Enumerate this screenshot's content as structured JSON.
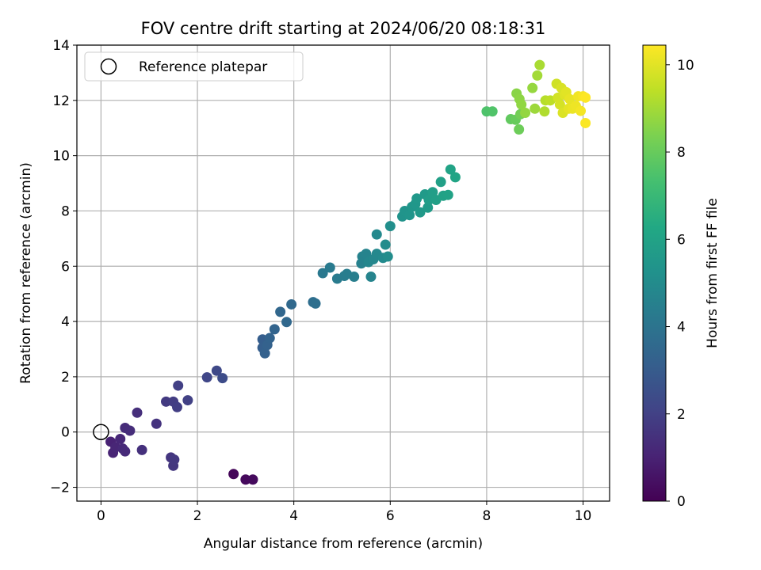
{
  "chart_data": {
    "type": "scatter",
    "title": "FOV centre drift starting at 2024/06/20 08:18:31",
    "xlabel": "Angular distance from reference (arcmin)",
    "ylabel": "Rotation from reference (arcmin)",
    "xlim": [
      -0.5,
      10.55
    ],
    "ylim": [
      -2.5,
      14
    ],
    "xticks": [
      0,
      2,
      4,
      6,
      8,
      10
    ],
    "yticks": [
      -2,
      0,
      2,
      4,
      6,
      8,
      10,
      12,
      14
    ],
    "grid": true,
    "legend": {
      "position": "top-left",
      "entries": [
        "Reference platepar"
      ]
    },
    "reference_point": {
      "x": 0,
      "y": 0,
      "label": "Reference platepar"
    },
    "colorbar": {
      "label": "Hours from first FF file",
      "range": [
        0,
        10.45
      ],
      "ticks": [
        0,
        2,
        4,
        6,
        8,
        10
      ],
      "colormap": "viridis"
    },
    "points": [
      {
        "x": 2.75,
        "y": -1.52,
        "c": 0.15
      },
      {
        "x": 3.0,
        "y": -1.72,
        "c": 0.25
      },
      {
        "x": 3.15,
        "y": -1.72,
        "c": 0.3
      },
      {
        "x": 0.2,
        "y": -0.35,
        "c": 1.0
      },
      {
        "x": 0.25,
        "y": -0.75,
        "c": 1.05
      },
      {
        "x": 0.3,
        "y": -0.55,
        "c": 1.1
      },
      {
        "x": 0.4,
        "y": -0.25,
        "c": 1.15
      },
      {
        "x": 0.45,
        "y": -0.6,
        "c": 1.2
      },
      {
        "x": 0.5,
        "y": -0.7,
        "c": 1.25
      },
      {
        "x": 0.5,
        "y": 0.15,
        "c": 1.3
      },
      {
        "x": 0.6,
        "y": 0.05,
        "c": 1.35
      },
      {
        "x": 0.75,
        "y": 0.7,
        "c": 1.4
      },
      {
        "x": 0.85,
        "y": -0.65,
        "c": 1.45
      },
      {
        "x": 1.15,
        "y": 0.3,
        "c": 1.55
      },
      {
        "x": 1.45,
        "y": -0.92,
        "c": 1.6
      },
      {
        "x": 1.5,
        "y": -1.22,
        "c": 1.65
      },
      {
        "x": 1.52,
        "y": -1.0,
        "c": 1.7
      },
      {
        "x": 1.35,
        "y": 1.1,
        "c": 1.75
      },
      {
        "x": 1.5,
        "y": 1.1,
        "c": 1.85
      },
      {
        "x": 1.58,
        "y": 0.9,
        "c": 1.9
      },
      {
        "x": 1.6,
        "y": 1.68,
        "c": 1.95
      },
      {
        "x": 1.8,
        "y": 1.15,
        "c": 2.0
      },
      {
        "x": 2.2,
        "y": 1.98,
        "c": 2.2
      },
      {
        "x": 2.4,
        "y": 2.22,
        "c": 2.3
      },
      {
        "x": 2.52,
        "y": 1.95,
        "c": 2.4
      },
      {
        "x": 3.35,
        "y": 3.35,
        "c": 3.1
      },
      {
        "x": 3.35,
        "y": 3.05,
        "c": 3.15
      },
      {
        "x": 3.4,
        "y": 2.85,
        "c": 3.2
      },
      {
        "x": 3.45,
        "y": 3.15,
        "c": 3.25
      },
      {
        "x": 3.5,
        "y": 3.4,
        "c": 3.3
      },
      {
        "x": 3.6,
        "y": 3.72,
        "c": 3.35
      },
      {
        "x": 3.72,
        "y": 4.35,
        "c": 3.45
      },
      {
        "x": 3.85,
        "y": 3.98,
        "c": 3.5
      },
      {
        "x": 3.95,
        "y": 4.62,
        "c": 3.55
      },
      {
        "x": 4.4,
        "y": 4.7,
        "c": 3.75
      },
      {
        "x": 4.45,
        "y": 4.65,
        "c": 3.8
      },
      {
        "x": 4.6,
        "y": 5.75,
        "c": 4.2
      },
      {
        "x": 4.75,
        "y": 5.95,
        "c": 4.25
      },
      {
        "x": 4.9,
        "y": 5.55,
        "c": 4.3
      },
      {
        "x": 5.05,
        "y": 5.65,
        "c": 4.35
      },
      {
        "x": 5.1,
        "y": 5.72,
        "c": 4.4
      },
      {
        "x": 5.25,
        "y": 5.62,
        "c": 4.45
      },
      {
        "x": 5.4,
        "y": 6.1,
        "c": 4.55
      },
      {
        "x": 5.42,
        "y": 6.35,
        "c": 4.6
      },
      {
        "x": 5.5,
        "y": 6.45,
        "c": 4.65
      },
      {
        "x": 5.6,
        "y": 5.62,
        "c": 4.7
      },
      {
        "x": 5.55,
        "y": 6.15,
        "c": 4.75
      },
      {
        "x": 5.65,
        "y": 6.25,
        "c": 4.8
      },
      {
        "x": 5.72,
        "y": 6.45,
        "c": 4.85
      },
      {
        "x": 5.72,
        "y": 7.15,
        "c": 4.9
      },
      {
        "x": 5.85,
        "y": 6.3,
        "c": 4.95
      },
      {
        "x": 5.9,
        "y": 6.78,
        "c": 5.0
      },
      {
        "x": 5.95,
        "y": 6.35,
        "c": 5.05
      },
      {
        "x": 6.0,
        "y": 7.45,
        "c": 5.15
      },
      {
        "x": 6.25,
        "y": 7.8,
        "c": 5.3
      },
      {
        "x": 6.3,
        "y": 8.0,
        "c": 5.35
      },
      {
        "x": 6.4,
        "y": 7.85,
        "c": 5.4
      },
      {
        "x": 6.45,
        "y": 8.15,
        "c": 5.45
      },
      {
        "x": 6.52,
        "y": 8.25,
        "c": 5.5
      },
      {
        "x": 6.55,
        "y": 8.45,
        "c": 5.55
      },
      {
        "x": 6.62,
        "y": 7.95,
        "c": 5.6
      },
      {
        "x": 6.72,
        "y": 8.6,
        "c": 5.65
      },
      {
        "x": 6.78,
        "y": 8.12,
        "c": 5.7
      },
      {
        "x": 6.8,
        "y": 8.4,
        "c": 5.75
      },
      {
        "x": 6.88,
        "y": 8.68,
        "c": 5.8
      },
      {
        "x": 6.95,
        "y": 8.4,
        "c": 5.85
      },
      {
        "x": 7.05,
        "y": 9.05,
        "c": 5.9
      },
      {
        "x": 7.1,
        "y": 8.55,
        "c": 5.95
      },
      {
        "x": 7.2,
        "y": 8.58,
        "c": 6.0
      },
      {
        "x": 7.25,
        "y": 9.5,
        "c": 6.05
      },
      {
        "x": 7.35,
        "y": 9.22,
        "c": 6.1
      },
      {
        "x": 8.0,
        "y": 11.6,
        "c": 7.5
      },
      {
        "x": 8.12,
        "y": 11.6,
        "c": 7.55
      },
      {
        "x": 8.5,
        "y": 11.32,
        "c": 7.9
      },
      {
        "x": 8.6,
        "y": 11.3,
        "c": 8.0
      },
      {
        "x": 8.67,
        "y": 10.95,
        "c": 8.1
      },
      {
        "x": 8.7,
        "y": 11.5,
        "c": 8.2
      },
      {
        "x": 8.62,
        "y": 12.25,
        "c": 8.6
      },
      {
        "x": 8.68,
        "y": 12.05,
        "c": 8.65
      },
      {
        "x": 8.72,
        "y": 11.85,
        "c": 8.7
      },
      {
        "x": 8.8,
        "y": 11.55,
        "c": 8.75
      },
      {
        "x": 8.95,
        "y": 12.45,
        "c": 8.8
      },
      {
        "x": 9.0,
        "y": 11.7,
        "c": 8.9
      },
      {
        "x": 9.05,
        "y": 12.9,
        "c": 9.0
      },
      {
        "x": 9.1,
        "y": 13.28,
        "c": 9.1
      },
      {
        "x": 9.2,
        "y": 11.6,
        "c": 9.2
      },
      {
        "x": 9.22,
        "y": 12.0,
        "c": 9.3
      },
      {
        "x": 9.32,
        "y": 12.0,
        "c": 9.4
      },
      {
        "x": 9.45,
        "y": 12.6,
        "c": 9.7
      },
      {
        "x": 9.48,
        "y": 12.1,
        "c": 9.75
      },
      {
        "x": 9.52,
        "y": 11.85,
        "c": 9.8
      },
      {
        "x": 9.55,
        "y": 12.45,
        "c": 9.85
      },
      {
        "x": 9.58,
        "y": 11.55,
        "c": 9.9
      },
      {
        "x": 9.62,
        "y": 12.2,
        "c": 9.95
      },
      {
        "x": 9.65,
        "y": 12.3,
        "c": 10.0
      },
      {
        "x": 9.7,
        "y": 11.7,
        "c": 10.05
      },
      {
        "x": 9.72,
        "y": 12.05,
        "c": 10.1
      },
      {
        "x": 9.78,
        "y": 11.7,
        "c": 10.15
      },
      {
        "x": 9.85,
        "y": 11.8,
        "c": 10.2
      },
      {
        "x": 9.9,
        "y": 12.15,
        "c": 10.25
      },
      {
        "x": 9.95,
        "y": 11.62,
        "c": 10.3
      },
      {
        "x": 10.0,
        "y": 12.15,
        "c": 10.35
      },
      {
        "x": 10.05,
        "y": 11.18,
        "c": 10.4
      },
      {
        "x": 10.05,
        "y": 12.1,
        "c": 10.45
      }
    ]
  }
}
